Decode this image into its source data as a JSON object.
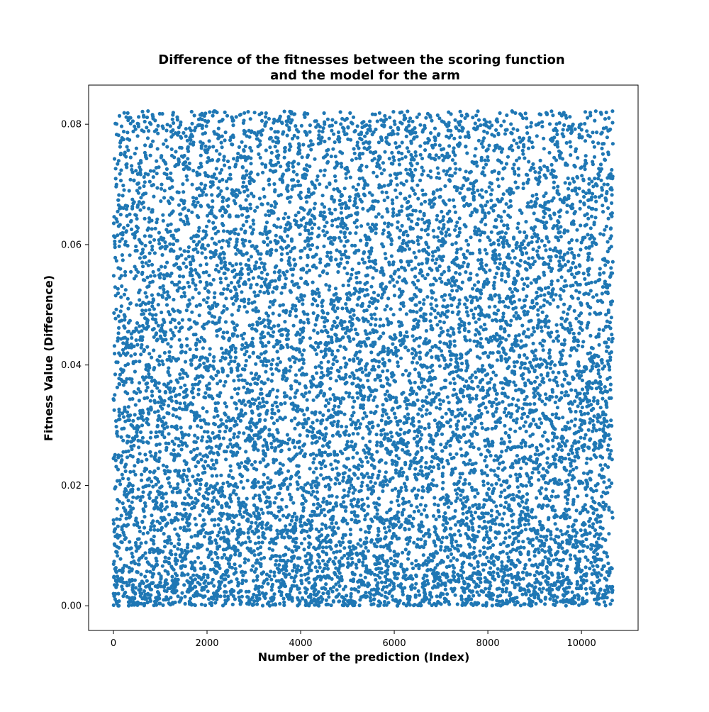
{
  "chart_data": {
    "type": "scatter",
    "title": "Difference of the fitnesses between the scoring function and the model for the arm",
    "title_lines": [
      "Difference of the fitnesses between the scoring function",
      "and the model for the arm"
    ],
    "xlabel": "Number of the prediction (Index)",
    "ylabel": "Fitness Value (Difference)",
    "xlim": [
      -530,
      11210
    ],
    "ylim": [
      -0.0041,
      0.0865
    ],
    "xticks": [
      0,
      2000,
      4000,
      6000,
      8000,
      10000
    ],
    "xtick_labels": [
      "0",
      "2000",
      "4000",
      "6000",
      "8000",
      "10000"
    ],
    "yticks": [
      0.0,
      0.02,
      0.04,
      0.06,
      0.08
    ],
    "ytick_labels": [
      "0.00",
      "0.02",
      "0.04",
      "0.06",
      "0.08"
    ],
    "grid": false,
    "legend": "none",
    "point_color": "#1f77b4",
    "series": [
      {
        "x_range": [
          0,
          10670
        ],
        "y_range": [
          0.0,
          0.0822
        ],
        "approx_point_count": 10671,
        "distribution": "dense, fairly uniform scatter across the full index range; somewhat denser toward lower fitness values"
      }
    ]
  }
}
